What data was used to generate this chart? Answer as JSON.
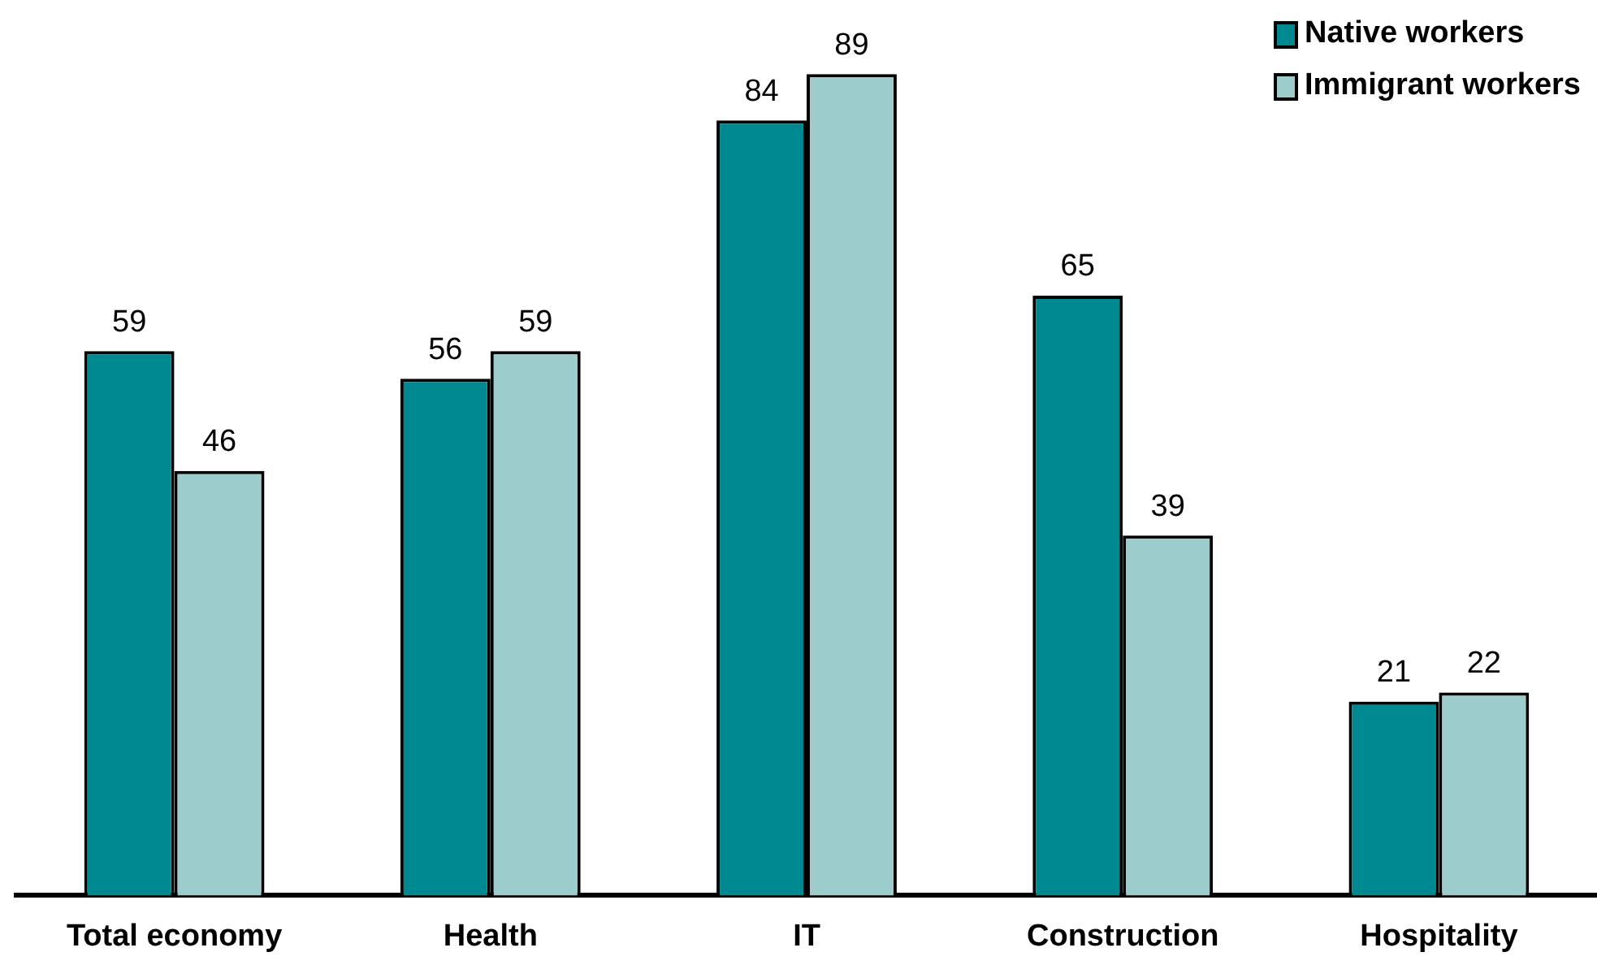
{
  "chart_data": {
    "type": "bar",
    "categories": [
      "Total economy",
      "Health",
      "IT",
      "Construction",
      "Hospitality"
    ],
    "series": [
      {
        "name": "Native workers",
        "color": "#008891",
        "values": [
          59,
          56,
          84,
          65,
          21
        ]
      },
      {
        "name": "Immigrant workers",
        "color": "#9ccccc",
        "values": [
          46,
          59,
          89,
          39,
          22
        ]
      }
    ],
    "data_labels": true,
    "legend": "top right",
    "grid": false,
    "tick_labels": "x"
  }
}
